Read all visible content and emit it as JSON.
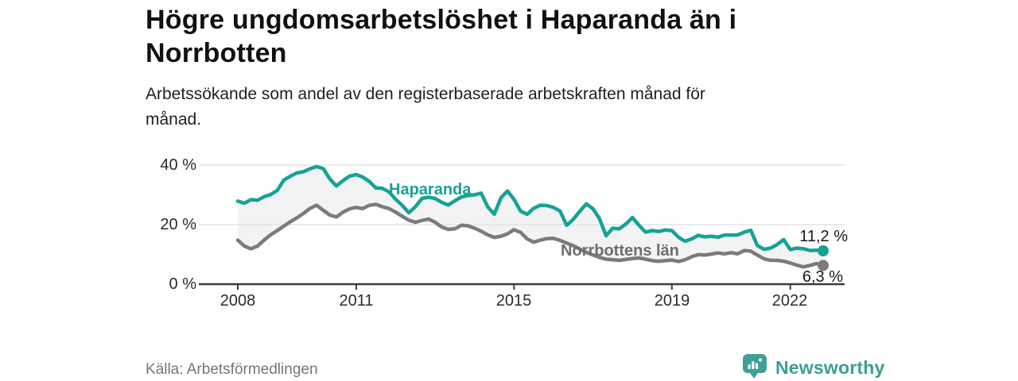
{
  "header": {
    "title": "Högre ungdomsarbetslöshet i Haparanda än i Norrbotten",
    "subtitle": "Arbetssökande som andel av den registerbaserade arbetskraften månad för månad."
  },
  "footer": {
    "source": "Källa: Arbetsförmedlingen",
    "brand": "Newsworthy"
  },
  "colors": {
    "haparanda": "#15a396",
    "norrbotten": "#7b7b7b",
    "norrbotten_label": "#6e6e6e",
    "area_fill": "#f3f3f3",
    "grid": "#e3e3e3",
    "axis": "#3c3c3c",
    "end_label_text": "#1a1a1a",
    "logo_teal": "#3fa09a"
  },
  "chart_data": {
    "type": "line",
    "title": "Högre ungdomsarbetslöshet i Haparanda än i Norrbotten",
    "subtitle": "Arbetssökande som andel av den registerbaserade arbetskraften månad för månad.",
    "unit": "%",
    "x_start_year": 2008,
    "points_per_year": 6,
    "grid": "horizontal",
    "area_between_series": true,
    "y_axis": {
      "ticks": [
        "0 %",
        "20 %",
        "40 %"
      ],
      "values": [
        0,
        20,
        40
      ],
      "ylim": [
        0,
        43
      ]
    },
    "x_axis": {
      "ticks": [
        "2008",
        "2011",
        "2015",
        "2019",
        "2022"
      ],
      "tick_years": [
        2008,
        2011,
        2015,
        2019,
        2022
      ]
    },
    "series": [
      {
        "name": "Haparanda",
        "color": "#15a396",
        "end_label": "11,2 %",
        "end_value": 11.2,
        "values": [
          27.9,
          27.2,
          28.4,
          28.2,
          29.4,
          30.1,
          31.5,
          35.0,
          36.3,
          37.4,
          37.8,
          38.8,
          39.5,
          38.8,
          35.3,
          33.0,
          34.8,
          36.3,
          36.8,
          36.0,
          34.5,
          32.3,
          32.2,
          31.0,
          28.5,
          26.5,
          24.0,
          26.0,
          28.8,
          29.2,
          28.8,
          27.5,
          26.6,
          28.0,
          29.3,
          29.8,
          30.0,
          30.6,
          26.0,
          23.5,
          29.0,
          31.3,
          28.5,
          24.5,
          23.5,
          25.5,
          26.5,
          26.4,
          25.8,
          24.6,
          19.8,
          21.8,
          24.5,
          27.0,
          25.3,
          22.0,
          16.3,
          18.8,
          18.6,
          20.2,
          22.4,
          19.8,
          17.5,
          18.0,
          17.7,
          18.2,
          18.0,
          15.8,
          14.4,
          15.2,
          16.4,
          15.9,
          16.1,
          15.8,
          16.5,
          16.5,
          16.5,
          17.5,
          18.1,
          13.0,
          11.7,
          12.1,
          13.3,
          15.0,
          11.6,
          12.1,
          11.9,
          11.3,
          11.4,
          11.2
        ]
      },
      {
        "name": "Norrbottens län",
        "color": "#7b7b7b",
        "end_label": "6,3 %",
        "end_value": 6.3,
        "values": [
          14.8,
          12.8,
          11.9,
          12.8,
          14.8,
          16.6,
          18.0,
          19.5,
          21.0,
          22.3,
          23.8,
          25.5,
          26.5,
          24.8,
          23.2,
          22.6,
          24.2,
          25.3,
          25.8,
          25.4,
          26.5,
          26.8,
          26.0,
          25.4,
          24.2,
          22.8,
          21.5,
          20.8,
          21.4,
          21.9,
          20.8,
          19.2,
          18.4,
          18.6,
          19.8,
          19.6,
          18.8,
          17.8,
          16.6,
          15.7,
          16.1,
          16.9,
          18.3,
          17.4,
          15.2,
          14.1,
          14.8,
          15.3,
          15.4,
          14.7,
          13.8,
          12.9,
          11.8,
          10.7,
          9.8,
          9.0,
          8.4,
          8.2,
          8.0,
          8.3,
          8.6,
          8.8,
          8.4,
          7.9,
          7.7,
          7.9,
          8.1,
          7.6,
          8.2,
          9.2,
          9.9,
          9.8,
          10.1,
          10.5,
          10.2,
          10.6,
          10.2,
          11.3,
          11.1,
          9.8,
          8.5,
          8.0,
          8.0,
          7.7,
          7.1,
          6.4,
          5.8,
          6.3,
          6.9,
          6.3
        ]
      }
    ]
  }
}
